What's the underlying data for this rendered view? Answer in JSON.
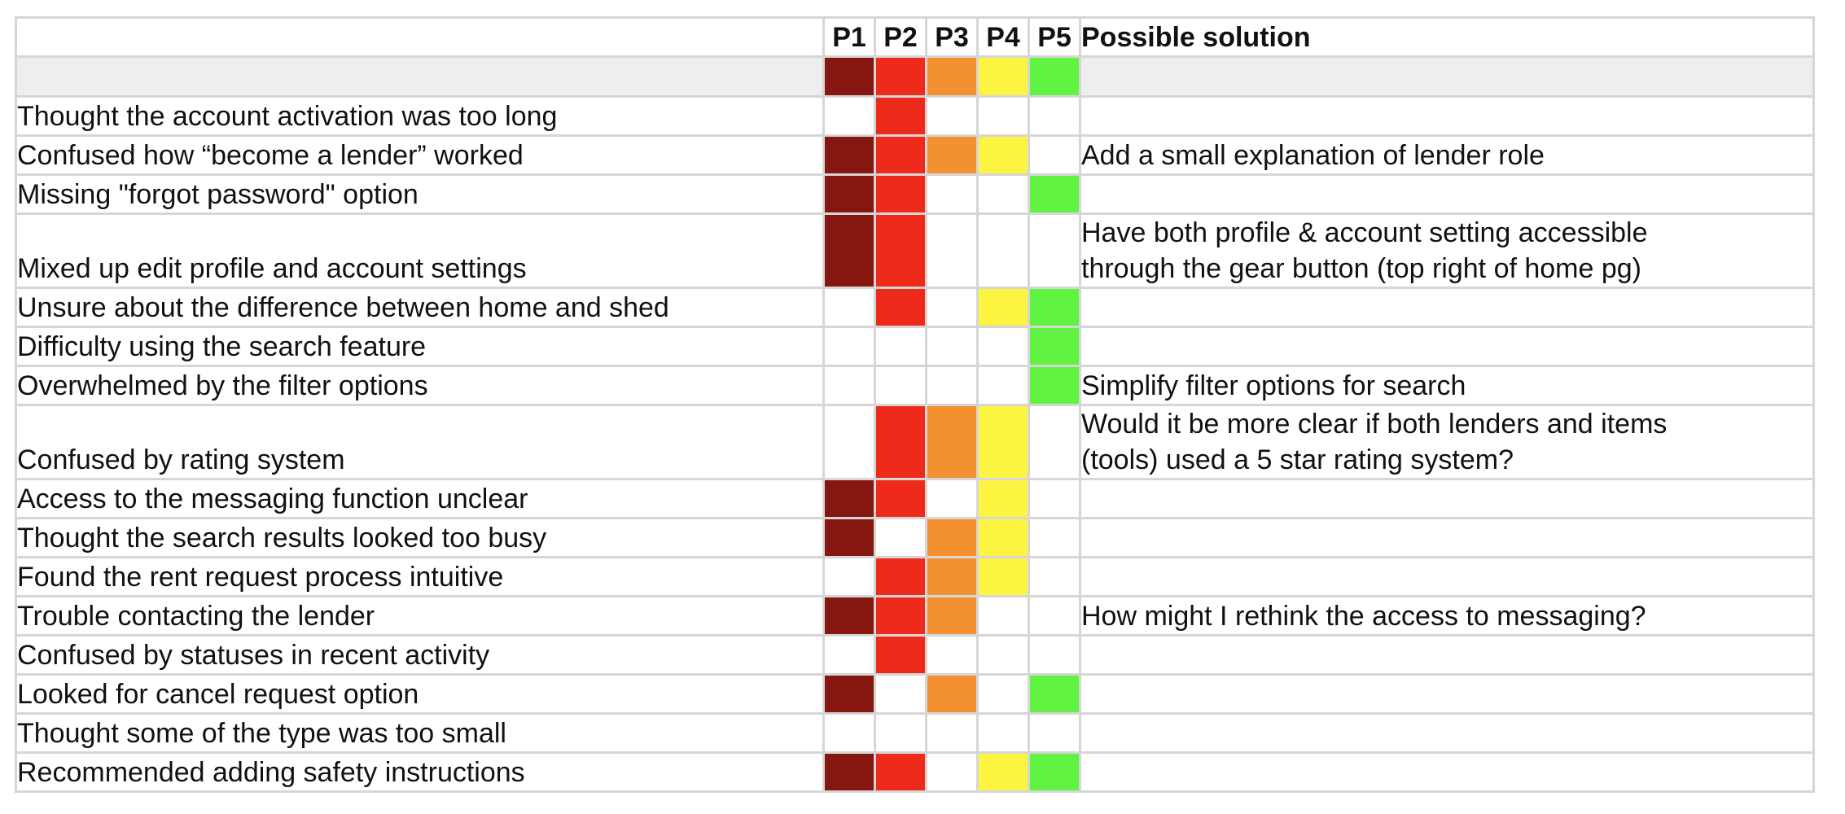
{
  "chart_data": {
    "type": "table",
    "participants": [
      "P1",
      "P2",
      "P3",
      "P4",
      "P5"
    ],
    "solution_header": "Possible solution",
    "participant_colors": [
      "#861710",
      "#ee2b1b",
      "#f39030",
      "#fbf541",
      "#60f341"
    ],
    "rows": [
      {
        "issue": "Thought the account activation was too long",
        "marks": [
          0,
          1,
          0,
          0,
          0
        ],
        "solution": ""
      },
      {
        "issue": "Confused how “become a lender” worked",
        "marks": [
          1,
          1,
          1,
          1,
          0
        ],
        "solution": "Add a small explanation of lender role"
      },
      {
        "issue": "Missing \"forgot password\" option",
        "marks": [
          1,
          1,
          0,
          0,
          1
        ],
        "solution": ""
      },
      {
        "issue": "Mixed up edit profile and account settings",
        "marks": [
          1,
          1,
          0,
          0,
          0
        ],
        "solution": "Have both profile & account setting accessible\nthrough the gear button (top right of home pg)"
      },
      {
        "issue": "Unsure about the difference between home and shed",
        "marks": [
          0,
          1,
          0,
          1,
          1
        ],
        "solution": ""
      },
      {
        "issue": "Difficulty using the search feature",
        "marks": [
          0,
          0,
          0,
          0,
          1
        ],
        "solution": ""
      },
      {
        "issue": "Overwhelmed by the filter options",
        "marks": [
          0,
          0,
          0,
          0,
          1
        ],
        "solution": "Simplify filter options for search"
      },
      {
        "issue": "Confused by rating system",
        "marks": [
          0,
          1,
          1,
          1,
          0
        ],
        "solution": "Would it be more clear if both lenders and items\n(tools) used a 5 star rating system?"
      },
      {
        "issue": "Access to the messaging function unclear",
        "marks": [
          1,
          1,
          0,
          1,
          0
        ],
        "solution": ""
      },
      {
        "issue": "Thought the search results looked too busy",
        "marks": [
          1,
          0,
          1,
          1,
          0
        ],
        "solution": ""
      },
      {
        "issue": "Found the rent request process intuitive",
        "marks": [
          0,
          1,
          1,
          1,
          0
        ],
        "solution": ""
      },
      {
        "issue": "Trouble contacting the lender",
        "marks": [
          1,
          1,
          1,
          0,
          0
        ],
        "solution": "How might I rethink the access to messaging?"
      },
      {
        "issue": "Confused by statuses in recent activity",
        "marks": [
          0,
          1,
          0,
          0,
          0
        ],
        "solution": ""
      },
      {
        "issue": "Looked for cancel request option",
        "marks": [
          1,
          0,
          1,
          0,
          1
        ],
        "solution": ""
      },
      {
        "issue": "Thought some of the type was too small",
        "marks": [
          0,
          0,
          0,
          0,
          0
        ],
        "solution": ""
      },
      {
        "issue": "Recommended adding safety instructions",
        "marks": [
          1,
          1,
          0,
          1,
          1
        ],
        "solution": ""
      }
    ]
  }
}
